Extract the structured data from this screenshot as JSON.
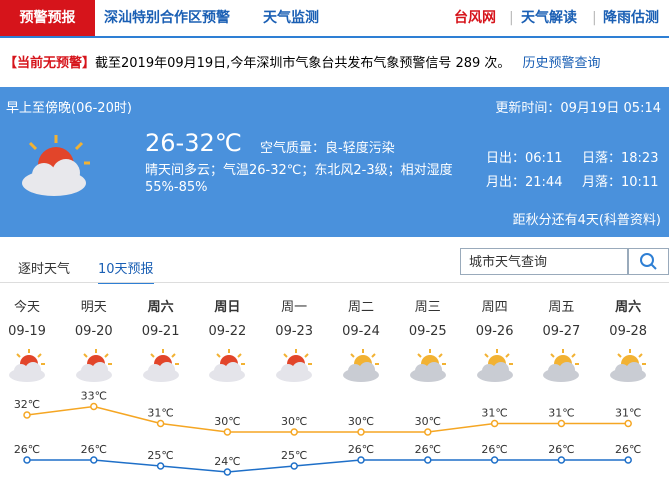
{
  "nav": {
    "left": [
      "预警预报",
      "深汕特别合作区预警",
      "天气监测"
    ],
    "right": [
      "台风网",
      "天气解读",
      "降雨估测"
    ]
  },
  "notice": {
    "status": "【当前无预警】",
    "text": "截至2019年09月19日,今年深圳市气象台共发布气象预警信号 289 次。",
    "link": "历史预警查询"
  },
  "today": {
    "period": "早上至傍晚(06-20时)",
    "updated": "更新时间：09月19日 05:14",
    "temp": "26-32℃",
    "air": "空气质量：良-轻度污染",
    "desc": "晴天间多云；气温26-32℃；东北风2-3级；相对湿度55%-85%",
    "sun": [
      "日出：06:11",
      "日落：18:23",
      "月出：21:44",
      "月落：10:11"
    ],
    "solar_term": "距秋分还有4天(科普资料)"
  },
  "tabs": [
    "逐时天气",
    "10天预报"
  ],
  "search": {
    "placeholder": "城市天气查询"
  },
  "forecast": {
    "days": [
      "今天",
      "明天",
      "周六",
      "周日",
      "周一",
      "周二",
      "周三",
      "周四",
      "周五",
      "周六"
    ],
    "dates": [
      "09-19",
      "09-20",
      "09-21",
      "09-22",
      "09-23",
      "09-24",
      "09-25",
      "09-26",
      "09-27",
      "09-28"
    ],
    "high": {
      "values": [
        32,
        33,
        31,
        30,
        30,
        30,
        30,
        31,
        31,
        31
      ],
      "value_labels": [
        "32℃",
        "33℃",
        "31℃",
        "30℃",
        "30℃",
        "30℃",
        "30℃",
        "31℃",
        "31℃",
        "31℃"
      ]
    },
    "low": {
      "values": [
        26,
        26,
        25,
        24,
        25,
        26,
        26,
        26,
        26,
        26
      ],
      "value_labels": [
        "26℃",
        "26℃",
        "25℃",
        "24℃",
        "25℃",
        "26℃",
        "26℃",
        "26℃",
        "26℃",
        "26℃"
      ]
    }
  }
}
